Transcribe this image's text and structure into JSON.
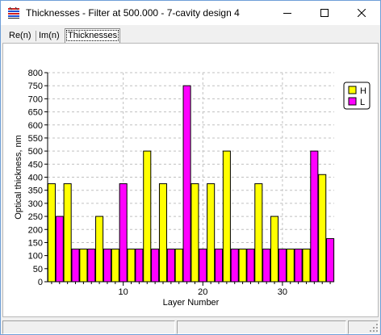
{
  "window": {
    "title": "Thicknesses - Filter at 500.000 - 7-cavity design 4",
    "app_icon": "coating-layers-icon",
    "controls": [
      "minimize-icon",
      "maximize-icon",
      "close-icon"
    ]
  },
  "tabs": [
    {
      "label": "Re(n)",
      "active": false
    },
    {
      "label": "Im(n)",
      "active": false
    },
    {
      "label": "Thicknesses",
      "active": true
    }
  ],
  "chart_data": {
    "type": "bar",
    "title": "",
    "xlabel": "Layer Number",
    "ylabel": "Optical thickness, nm",
    "xlim": [
      0.5,
      36.5
    ],
    "ylim": [
      0,
      800
    ],
    "yticks": [
      0,
      50,
      100,
      150,
      200,
      250,
      300,
      350,
      400,
      450,
      500,
      550,
      600,
      650,
      700,
      750,
      800
    ],
    "xticks": [
      10,
      20,
      30
    ],
    "grid": true,
    "legend_position": "top-right",
    "series": [
      {
        "name": "H",
        "color": "#ffff00",
        "x": [
          1,
          3,
          5,
          7,
          9,
          11,
          13,
          15,
          17,
          19,
          21,
          23,
          25,
          27,
          29,
          31,
          33,
          35
        ],
        "values": [
          375,
          375,
          125,
          250,
          125,
          125,
          500,
          375,
          125,
          375,
          375,
          500,
          125,
          375,
          250,
          125,
          125,
          410
        ]
      },
      {
        "name": "L",
        "color": "#ff00ff",
        "x": [
          2,
          4,
          6,
          8,
          10,
          12,
          14,
          16,
          18,
          20,
          22,
          24,
          26,
          28,
          30,
          32,
          34,
          36
        ],
        "values": [
          250,
          125,
          125,
          125,
          375,
          125,
          125,
          125,
          750,
          125,
          125,
          125,
          125,
          125,
          125,
          125,
          500,
          165
        ]
      }
    ]
  },
  "statusbar": {
    "panes": [
      "",
      "",
      ""
    ]
  }
}
